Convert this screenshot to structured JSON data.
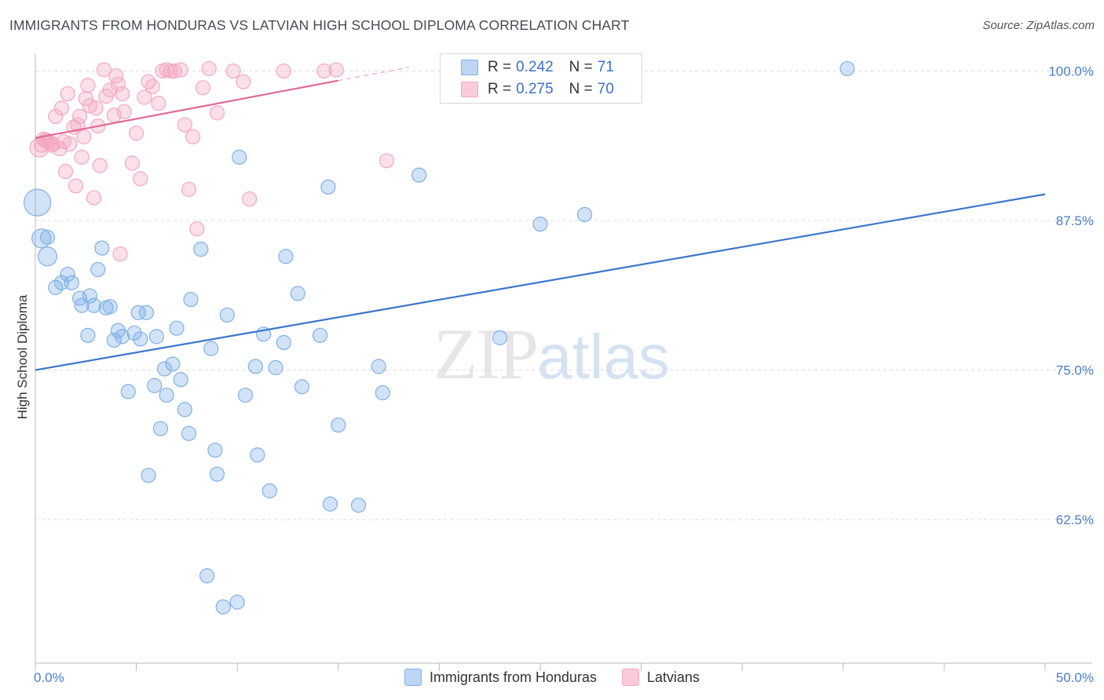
{
  "chart_data": {
    "type": "scatter",
    "title": "IMMIGRANTS FROM HONDURAS VS LATVIAN HIGH SCHOOL DIPLOMA CORRELATION CHART",
    "source": "Source: ZipAtlas.com",
    "xlabel": "",
    "ylabel": "High School Diploma",
    "xlim": [
      0,
      50
    ],
    "ylim": [
      50.5,
      102
    ],
    "x_tick_labels": [
      "0.0%",
      "50.0%"
    ],
    "y_ticks": [
      62.5,
      75.0,
      87.5,
      100.0
    ],
    "y_tick_labels": [
      "62.5%",
      "75.0%",
      "87.5%",
      "100.0%"
    ],
    "watermark": {
      "zip": "ZIP",
      "atlas": "atlas"
    },
    "legend": [
      {
        "r_label": "R = ",
        "r_value": "0.242",
        "n_label": "N = ",
        "n_value": "71"
      },
      {
        "r_label": "R = ",
        "r_value": "0.275",
        "n_label": "N = ",
        "n_value": "70"
      }
    ],
    "series": [
      {
        "name": "Immigrants from Honduras",
        "color": "#7fb0e8",
        "line_color": "#3b76cc",
        "trend": {
          "x": [
            0,
            50
          ],
          "y": [
            75.0,
            89.7
          ]
        },
        "points": [
          [
            0.1,
            89.0,
            3
          ],
          [
            0.3,
            86.0,
            2
          ],
          [
            0.6,
            86.1,
            1
          ],
          [
            0.6,
            84.5,
            2
          ],
          [
            1.0,
            81.9,
            1
          ],
          [
            1.3,
            82.3,
            1
          ],
          [
            1.6,
            83.0,
            1
          ],
          [
            1.8,
            82.3,
            1
          ],
          [
            2.2,
            81.0,
            1
          ],
          [
            2.3,
            80.4,
            1
          ],
          [
            2.7,
            81.2,
            1
          ],
          [
            2.6,
            77.9,
            1
          ],
          [
            2.9,
            80.4,
            1
          ],
          [
            3.1,
            83.4,
            1
          ],
          [
            3.3,
            85.2,
            1
          ],
          [
            3.5,
            80.2,
            1
          ],
          [
            3.7,
            80.3,
            1
          ],
          [
            3.9,
            77.5,
            1
          ],
          [
            4.1,
            78.3,
            1
          ],
          [
            4.3,
            77.8,
            1
          ],
          [
            4.6,
            73.2,
            1
          ],
          [
            4.9,
            78.1,
            1
          ],
          [
            5.1,
            79.8,
            1
          ],
          [
            5.2,
            77.6,
            1
          ],
          [
            5.5,
            79.8,
            1
          ],
          [
            5.6,
            66.2,
            1
          ],
          [
            5.9,
            73.7,
            1
          ],
          [
            6.0,
            77.8,
            1
          ],
          [
            6.2,
            70.1,
            1
          ],
          [
            6.4,
            75.1,
            1
          ],
          [
            6.5,
            72.9,
            1
          ],
          [
            6.8,
            75.5,
            1
          ],
          [
            7.0,
            78.5,
            1
          ],
          [
            7.2,
            74.2,
            1
          ],
          [
            7.4,
            71.7,
            1
          ],
          [
            7.6,
            69.7,
            1
          ],
          [
            7.7,
            80.9,
            1
          ],
          [
            8.2,
            85.1,
            1
          ],
          [
            8.5,
            57.8,
            1
          ],
          [
            8.7,
            76.8,
            1
          ],
          [
            8.9,
            68.3,
            1
          ],
          [
            9.0,
            66.3,
            1
          ],
          [
            9.3,
            55.2,
            1
          ],
          [
            9.5,
            79.6,
            1
          ],
          [
            10.0,
            55.6,
            1
          ],
          [
            10.1,
            92.8,
            1
          ],
          [
            10.4,
            72.9,
            1
          ],
          [
            10.9,
            75.3,
            1
          ],
          [
            11.3,
            78.0,
            1
          ],
          [
            11.0,
            67.9,
            1
          ],
          [
            11.6,
            64.9,
            1
          ],
          [
            11.9,
            75.2,
            1
          ],
          [
            12.3,
            77.3,
            1
          ],
          [
            12.4,
            84.5,
            1
          ],
          [
            13.0,
            81.4,
            1
          ],
          [
            13.2,
            73.6,
            1
          ],
          [
            14.1,
            77.9,
            1
          ],
          [
            14.5,
            90.3,
            1
          ],
          [
            14.6,
            63.8,
            1
          ],
          [
            15.0,
            70.4,
            1
          ],
          [
            16.0,
            63.7,
            1
          ],
          [
            17.0,
            75.3,
            1
          ],
          [
            17.2,
            73.1,
            1
          ],
          [
            19.0,
            91.3,
            1
          ],
          [
            23.0,
            77.7,
            1
          ],
          [
            24.0,
            100.0,
            1
          ],
          [
            25.0,
            87.2,
            1
          ],
          [
            27.2,
            88.0,
            1
          ],
          [
            28.5,
            100.3,
            1
          ],
          [
            40.2,
            100.2,
            1
          ]
        ]
      },
      {
        "name": "Latvians",
        "color": "#f4a7bf",
        "line_color": "#e06a93",
        "trend": {
          "x": [
            0,
            15
          ],
          "y": [
            94.4,
            99.2
          ]
        },
        "trend_dash": {
          "x": [
            15,
            18.5
          ],
          "y": [
            99.2,
            100.3
          ]
        },
        "points": [
          [
            0.2,
            93.6,
            2
          ],
          [
            0.3,
            93.8,
            1
          ],
          [
            0.4,
            94.3,
            1
          ],
          [
            0.5,
            94.2,
            1
          ],
          [
            0.6,
            94.2,
            1
          ],
          [
            0.7,
            94.0,
            1
          ],
          [
            0.8,
            93.8,
            1
          ],
          [
            0.9,
            93.9,
            1
          ],
          [
            1.0,
            96.2,
            1
          ],
          [
            1.2,
            93.5,
            1
          ],
          [
            1.3,
            96.9,
            1
          ],
          [
            1.4,
            94.1,
            1
          ],
          [
            1.5,
            91.6,
            1
          ],
          [
            1.6,
            98.1,
            1
          ],
          [
            1.7,
            93.9,
            1
          ],
          [
            1.9,
            95.3,
            1
          ],
          [
            2.0,
            90.4,
            1
          ],
          [
            2.1,
            95.5,
            1
          ],
          [
            2.2,
            96.2,
            1
          ],
          [
            2.3,
            92.8,
            1
          ],
          [
            2.4,
            94.5,
            1
          ],
          [
            2.5,
            97.7,
            1
          ],
          [
            2.6,
            98.8,
            1
          ],
          [
            2.7,
            97.1,
            1
          ],
          [
            2.9,
            89.4,
            1
          ],
          [
            3.0,
            96.9,
            1
          ],
          [
            3.1,
            95.4,
            1
          ],
          [
            3.2,
            92.1,
            1
          ],
          [
            3.4,
            100.1,
            1
          ],
          [
            3.5,
            97.9,
            1
          ],
          [
            3.7,
            98.4,
            1
          ],
          [
            3.9,
            96.3,
            1
          ],
          [
            4.0,
            99.6,
            1
          ],
          [
            4.1,
            98.9,
            1
          ],
          [
            4.2,
            84.7,
            1
          ],
          [
            4.3,
            98.1,
            1
          ],
          [
            4.4,
            96.6,
            1
          ],
          [
            4.8,
            92.3,
            1
          ],
          [
            5.0,
            94.8,
            1
          ],
          [
            5.2,
            91.0,
            1
          ],
          [
            5.4,
            97.8,
            1
          ],
          [
            5.6,
            99.1,
            1
          ],
          [
            5.8,
            98.7,
            1
          ],
          [
            6.1,
            97.3,
            1
          ],
          [
            6.3,
            100.0,
            1
          ],
          [
            6.5,
            100.1,
            1
          ],
          [
            6.7,
            100.0,
            1
          ],
          [
            6.9,
            100.0,
            1
          ],
          [
            7.2,
            100.1,
            1
          ],
          [
            7.4,
            95.5,
            1
          ],
          [
            7.6,
            90.1,
            1
          ],
          [
            7.8,
            94.5,
            1
          ],
          [
            8.0,
            86.8,
            1
          ],
          [
            8.3,
            98.6,
            1
          ],
          [
            8.6,
            100.2,
            1
          ],
          [
            9.0,
            96.5,
            1
          ],
          [
            9.8,
            100.0,
            1
          ],
          [
            10.3,
            99.1,
            1
          ],
          [
            10.6,
            89.3,
            1
          ],
          [
            12.3,
            100.0,
            1
          ],
          [
            14.3,
            100.0,
            1
          ],
          [
            14.9,
            100.1,
            1
          ],
          [
            17.4,
            92.5,
            1
          ]
        ]
      }
    ]
  }
}
